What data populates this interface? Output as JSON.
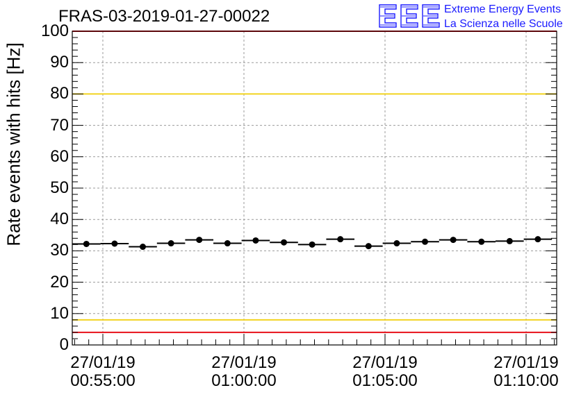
{
  "title": "FRAS-03-2019-01-27-00022",
  "logo": {
    "mark": "EEE",
    "line1": "Extreme Energy Events",
    "line2": "La Scienza nelle Scuole",
    "color": "#1a1aff"
  },
  "chart_data": {
    "type": "scatter",
    "ylabel": "Rate events with hits [Hz]",
    "ylim": [
      0,
      100
    ],
    "yticks": [
      0,
      10,
      20,
      30,
      40,
      50,
      60,
      70,
      80,
      90,
      100
    ],
    "xlim": [
      "00:53:55",
      "01:11:05"
    ],
    "xticks": [
      {
        "date": "27/01/19",
        "time": "00:55:00"
      },
      {
        "date": "27/01/19",
        "time": "01:00:00"
      },
      {
        "date": "27/01/19",
        "time": "01:05:00"
      },
      {
        "date": "27/01/19",
        "time": "01:10:00"
      }
    ],
    "grid": true,
    "bin_width_seconds": 60,
    "x": [
      "00:54:25",
      "00:55:25",
      "00:56:25",
      "00:57:25",
      "00:58:25",
      "00:59:25",
      "01:00:25",
      "01:01:25",
      "01:02:25",
      "01:03:25",
      "01:04:25",
      "01:05:25",
      "01:06:25",
      "01:07:25",
      "01:08:25",
      "01:09:25",
      "01:10:25"
    ],
    "values": [
      32.2,
      32.3,
      31.3,
      32.4,
      33.5,
      32.4,
      33.3,
      32.7,
      32.0,
      33.7,
      31.5,
      32.4,
      32.9,
      33.5,
      32.9,
      33.1,
      33.7
    ],
    "reference_lines": [
      {
        "y": 80,
        "color": "#f2d31f"
      },
      {
        "y": 8,
        "color": "#f2d31f"
      },
      {
        "y": 100,
        "color": "#e8111a"
      },
      {
        "y": 4,
        "color": "#e8111a"
      }
    ],
    "marker_color": "#000000"
  }
}
